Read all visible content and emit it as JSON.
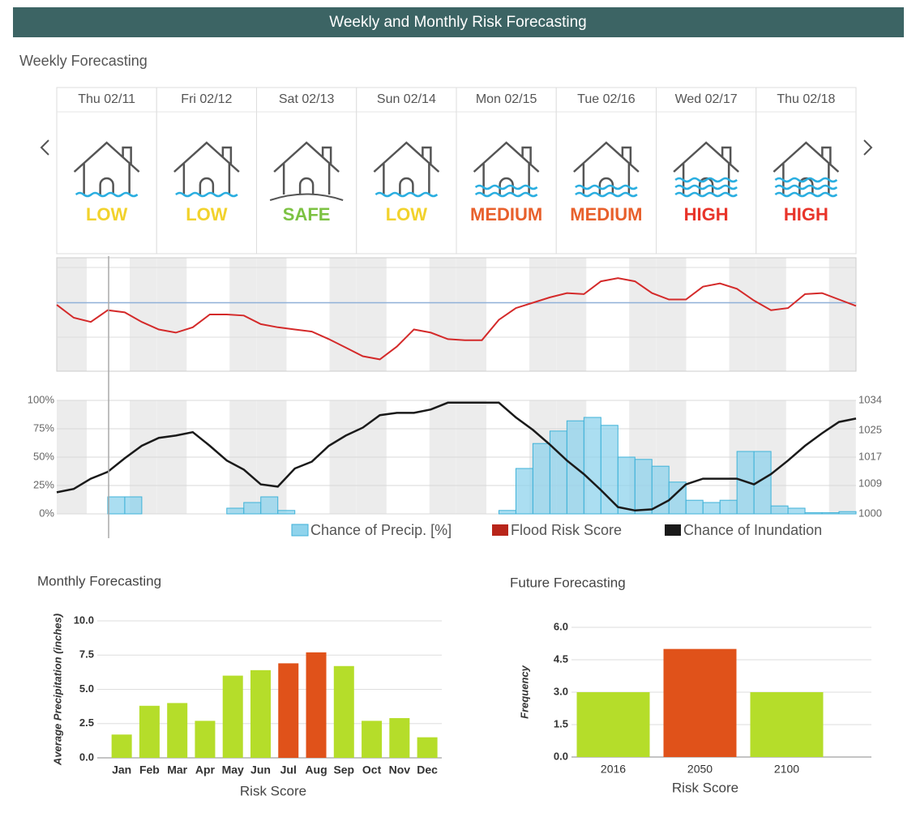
{
  "header": {
    "title": "Weekly and Monthly Risk Forecasting"
  },
  "weekly_cards": [
    {
      "date": "Thu 02/11",
      "risk": "LOW",
      "color": "#f2d22c"
    },
    {
      "date": "Fri 02/12",
      "risk": "LOW",
      "color": "#f2d22c"
    },
    {
      "date": "Sat 02/13",
      "risk": "SAFE",
      "color": "#7cc242"
    },
    {
      "date": "Sun 02/14",
      "risk": "LOW",
      "color": "#f2d22c"
    },
    {
      "date": "Mon 02/15",
      "risk": "MEDIUM",
      "color": "#e8602c"
    },
    {
      "date": "Tue 02/16",
      "risk": "MEDIUM",
      "color": "#e8602c"
    },
    {
      "date": "Wed 02/17",
      "risk": "HIGH",
      "color": "#e8342a"
    },
    {
      "date": "Thu 02/18",
      "risk": "HIGH",
      "color": "#e8342a"
    }
  ],
  "chart_data": [
    {
      "type": "combo",
      "title": "Weekly Forecasting",
      "ylim": [
        0,
        100
      ],
      "yticks": [
        {
          "value": 0,
          "label": "0%"
        },
        {
          "value": 25,
          "label": "25%"
        },
        {
          "value": 50,
          "label": "50%"
        },
        {
          "value": 75,
          "label": "75%"
        },
        {
          "value": 100,
          "label": "100%"
        }
      ],
      "y2lim": [
        1000,
        1034
      ],
      "y2ticks": [
        1000,
        1009,
        1017,
        1025,
        1034
      ],
      "reference_value": 61,
      "reference_color": "#8fb0d8",
      "series": [
        {
          "name": "Chance of Precip. [%]",
          "color": "#8fd3ec",
          "values": [
            0,
            0,
            0,
            15,
            15,
            0,
            0,
            0,
            0,
            0,
            5,
            10,
            15,
            3,
            0,
            0,
            0,
            0,
            0,
            0,
            0,
            0,
            0,
            0,
            0,
            0,
            3,
            40,
            62,
            73,
            82,
            85,
            78,
            50,
            48,
            42,
            28,
            12,
            10,
            12,
            55,
            55,
            7,
            5,
            1,
            1,
            2,
            2
          ]
        },
        {
          "name": "Flood Risk Score",
          "color": "#b8251a",
          "panel": "upper",
          "panel_ylim": [
            0,
            100
          ],
          "values": [
            59,
            47,
            43,
            54,
            52,
            43,
            36,
            33,
            38,
            50,
            50,
            49,
            41,
            38,
            36,
            34,
            27,
            19,
            11,
            8,
            20,
            36,
            33,
            27,
            26,
            26,
            45,
            56,
            61,
            66,
            70,
            69,
            81,
            84,
            81,
            70,
            64,
            64,
            76,
            79,
            74,
            63,
            54,
            56,
            69,
            70,
            64,
            58
          ]
        },
        {
          "name": "Chance of Inundation",
          "color": "#1a1a1a",
          "values": [
            19,
            22,
            31,
            37,
            49,
            60,
            67,
            69,
            72,
            60,
            47,
            39,
            26,
            24,
            40,
            46,
            60,
            69,
            76,
            87,
            89,
            89,
            92,
            98,
            98,
            98,
            98,
            85,
            74,
            61,
            47,
            35,
            21,
            6,
            3,
            4,
            12,
            26,
            31,
            31,
            31,
            26,
            35,
            47,
            60,
            71,
            81,
            84
          ]
        }
      ]
    },
    {
      "type": "bar",
      "title": "Monthly Forecasting",
      "categories": [
        "Jan",
        "Feb",
        "Mar",
        "Apr",
        "May",
        "Jun",
        "Jul",
        "Aug",
        "Sep",
        "Oct",
        "Nov",
        "Dec"
      ],
      "values": [
        1.7,
        3.8,
        4.0,
        2.7,
        6.0,
        6.4,
        6.9,
        7.7,
        6.7,
        2.7,
        2.9,
        1.5
      ],
      "colors": [
        "#b5dd2a",
        "#b5dd2a",
        "#b5dd2a",
        "#b5dd2a",
        "#b5dd2a",
        "#b5dd2a",
        "#e0521a",
        "#e0521a",
        "#b5dd2a",
        "#b5dd2a",
        "#b5dd2a",
        "#b5dd2a"
      ],
      "ylim": [
        0,
        10
      ],
      "yticks": [
        {
          "value": 0,
          "label": "0.0"
        },
        2.5,
        {
          "value": 5,
          "label": "5.0"
        },
        7.5,
        {
          "value": 10,
          "label": "10.0"
        }
      ],
      "ylabel": "Average Precipitation (inches)",
      "xlabel": "Risk Score",
      "grid": true
    },
    {
      "type": "bar",
      "title": "Future Forecasting",
      "categories": [
        "2016",
        "2050",
        "2100"
      ],
      "values": [
        3.0,
        5.0,
        3.0
      ],
      "colors": [
        "#b5dd2a",
        "#e0521a",
        "#b5dd2a"
      ],
      "ylim": [
        0,
        6
      ],
      "yticks": [
        {
          "value": 0,
          "label": "0.0"
        },
        1.5,
        {
          "value": 3,
          "label": "3.0"
        },
        4.5,
        {
          "value": 6,
          "label": "6.0"
        }
      ],
      "ylabel": "Frequency",
      "xlabel": "Risk Score",
      "grid": true
    }
  ]
}
